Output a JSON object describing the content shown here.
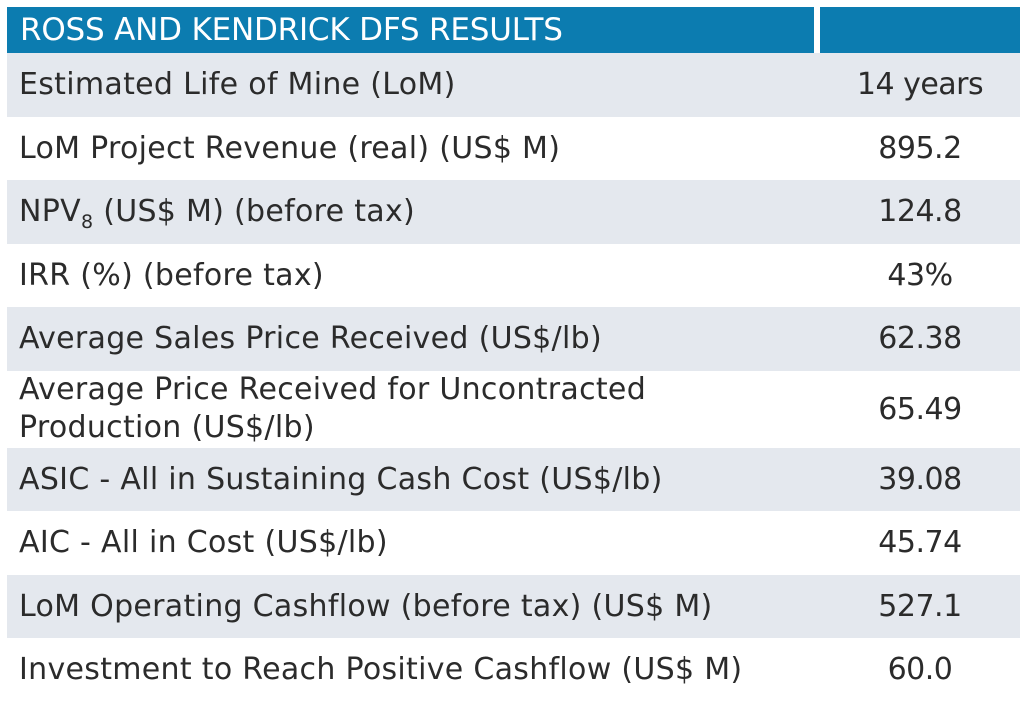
{
  "table": {
    "title": "ROSS AND KENDRICK DFS RESULTS",
    "rows": [
      {
        "label": "Estimated Life of Mine (LoM)",
        "value": "14 years"
      },
      {
        "label": "LoM Project Revenue (real) (US$ M)",
        "value": "895.2"
      },
      {
        "label_pre": "NPV",
        "label_sub": "8",
        "label_post": " (US$ M) (before tax)",
        "value": "124.8"
      },
      {
        "label": "IRR (%) (before tax)",
        "value": "43%"
      },
      {
        "label": "Average Sales Price Received (US$/lb)",
        "value": "62.38"
      },
      {
        "label": "Average Price Received for Uncontracted Production (US$/lb)",
        "value": "65.49"
      },
      {
        "label": "ASIC - All in Sustaining Cash Cost (US$/lb)",
        "value": "39.08"
      },
      {
        "label": "AIC - All in Cost (US$/lb)",
        "value": "45.74"
      },
      {
        "label": "LoM Operating Cashflow (before tax) (US$ M)",
        "value": "527.1"
      },
      {
        "label": "Investment to Reach Positive Cashflow (US$ M)",
        "value": "60.0"
      }
    ]
  },
  "colors": {
    "header_bg": "#0c7cb0",
    "header_text": "#ffffff",
    "shaded_row": "#e4e8ee",
    "plain_row": "#ffffff",
    "text": "#2b2b2b"
  }
}
